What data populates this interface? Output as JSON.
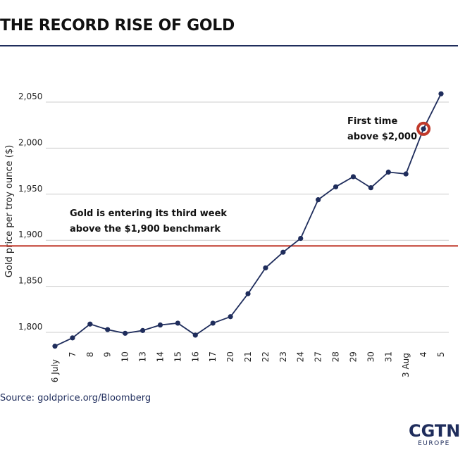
{
  "title": "THE RECORD RISE OF GOLD",
  "source": "Source: goldprice.org/Bloomberg",
  "logo": {
    "main": "CGTN",
    "sub": "EUROPE"
  },
  "colors": {
    "line": "#1f2d5c",
    "marker": "#1f2d5c",
    "benchmark": "#c0392b",
    "highlight": "#c0392b",
    "grid": "#cccccc"
  },
  "chart_data": {
    "type": "line",
    "title": "THE RECORD RISE OF GOLD",
    "xlabel": "",
    "ylabel": "Gold price per troy ounce ($)",
    "ylim": [
      1775,
      2065
    ],
    "yticks": [
      1800,
      1850,
      1900,
      1950,
      2000,
      2050
    ],
    "ytick_labels": [
      "1,800",
      "1,850",
      "1,900",
      "1,950",
      "2,000",
      "2,050"
    ],
    "grid": true,
    "categories": [
      "6 July",
      "7",
      "8",
      "9",
      "10",
      "13",
      "14",
      "15",
      "16",
      "17",
      "20",
      "21",
      "22",
      "23",
      "24",
      "27",
      "28",
      "29",
      "30",
      "31",
      "3 Aug",
      "4",
      "5"
    ],
    "series": [
      {
        "values": [
          1785,
          1794,
          1809,
          1803,
          1799,
          1802,
          1808,
          1810,
          1797,
          1810,
          1817,
          1842,
          1870,
          1887,
          1902,
          1944,
          1958,
          1969,
          1957,
          1974,
          1972,
          2021,
          2059
        ]
      }
    ],
    "benchmark": {
      "value": 1900
    },
    "highlight_index": 21,
    "annotations": [
      {
        "lines": [
          "Gold is entering its third week",
          "above the $1,900 benchmark"
        ]
      },
      {
        "lines": [
          "First time",
          "above $2,000"
        ]
      }
    ]
  }
}
